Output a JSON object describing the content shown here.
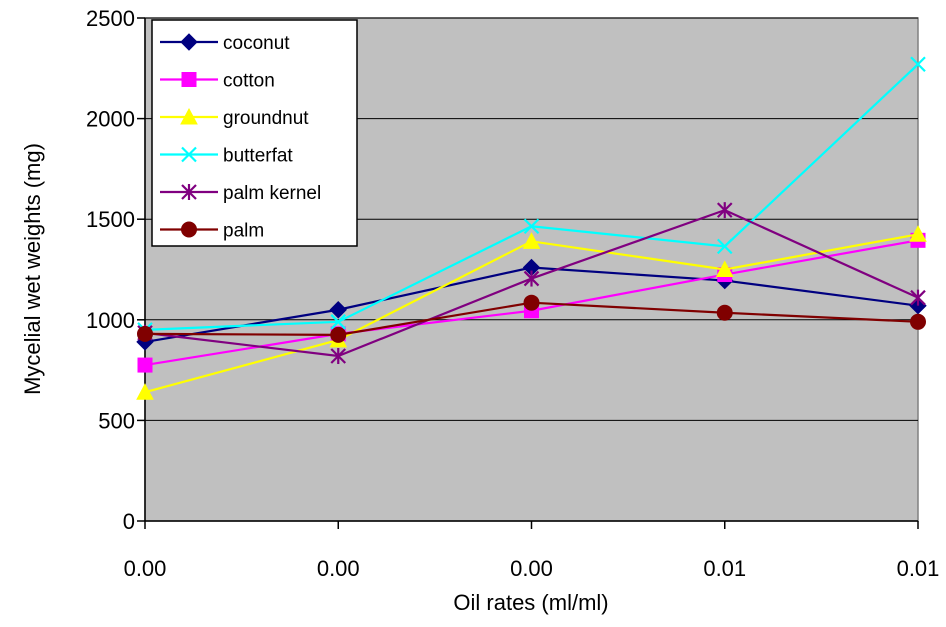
{
  "chart_data": {
    "type": "line",
    "title": "",
    "xlabel": "Oil rates (ml/ml)",
    "ylabel": "Mycelial wet weights (mg)",
    "categories": [
      "0.00",
      "0.00",
      "0.00",
      "0.01",
      "0.01"
    ],
    "ylim": [
      0,
      2500
    ],
    "yticks": [
      "0",
      "500",
      "1000",
      "1500",
      "2000",
      "2500"
    ],
    "grid": "horizontal",
    "plot_background": "#c0c0c0",
    "legend_position": "top-left",
    "series": [
      {
        "name": "coconut",
        "color": "#000080",
        "marker": "diamond",
        "values": [
          890,
          1050,
          1260,
          1195,
          1070
        ]
      },
      {
        "name": "cotton",
        "color": "#ff00ff",
        "marker": "square",
        "values": [
          775,
          930,
          1045,
          1225,
          1395
        ]
      },
      {
        "name": "groundnut",
        "color": "#ffff00",
        "marker": "triangle",
        "values": [
          640,
          900,
          1390,
          1250,
          1425
        ]
      },
      {
        "name": "butterfat",
        "color": "#00ffff",
        "marker": "x",
        "values": [
          950,
          990,
          1465,
          1365,
          2270
        ]
      },
      {
        "name": "palm kernel",
        "color": "#800080",
        "marker": "asterisk",
        "values": [
          935,
          820,
          1205,
          1545,
          1110
        ]
      },
      {
        "name": "palm",
        "color": "#800000",
        "marker": "circle",
        "values": [
          930,
          925,
          1085,
          1035,
          990
        ]
      }
    ]
  }
}
